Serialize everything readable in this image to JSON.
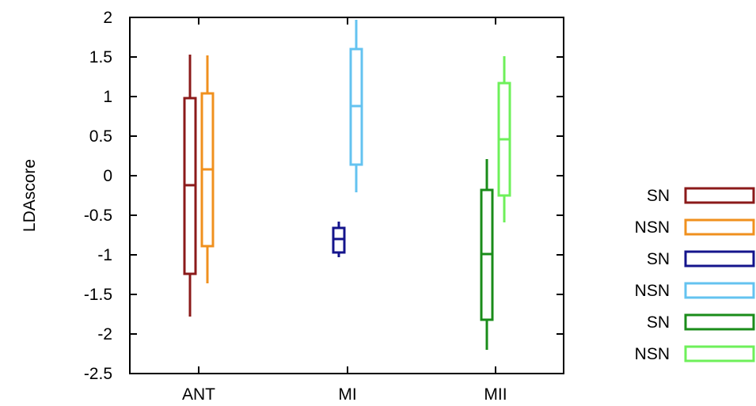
{
  "chart_data": {
    "type": "box",
    "title": "",
    "xlabel": "",
    "ylabel": "LDAscore",
    "ylim": [
      -2.5,
      2
    ],
    "yticks": [
      -2.5,
      -2,
      -1.5,
      -1,
      -0.5,
      0,
      0.5,
      1,
      1.5,
      2
    ],
    "ytick_labels": [
      "-2.5",
      "-2",
      "-1.5",
      "-1",
      "-0.5",
      "0",
      "0.5",
      "1",
      "1.5",
      "2"
    ],
    "categories": [
      "ANT",
      "MI",
      "MII"
    ],
    "grid": false,
    "legend": "right",
    "series": [
      {
        "name": "SN",
        "category": "ANT",
        "color": "#8b1a1a",
        "min": -1.78,
        "q1": -1.24,
        "median": -0.12,
        "q3": 0.98,
        "max": 1.53
      },
      {
        "name": "NSN",
        "category": "ANT",
        "color": "#f0901e",
        "min": -1.36,
        "q1": -0.89,
        "median": 0.08,
        "q3": 1.04,
        "max": 1.52
      },
      {
        "name": "SN",
        "category": "MI",
        "color": "#14148c",
        "min": -1.03,
        "q1": -0.97,
        "median": -0.8,
        "q3": -0.66,
        "max": -0.58
      },
      {
        "name": "NSN",
        "category": "MI",
        "color": "#64c3f0",
        "min": -0.21,
        "q1": 0.14,
        "median": 0.88,
        "q3": 1.6,
        "max": 1.97
      },
      {
        "name": "SN",
        "category": "MII",
        "color": "#1a8c1a",
        "min": -2.2,
        "q1": -1.82,
        "median": -0.99,
        "q3": -0.18,
        "max": 0.21
      },
      {
        "name": "NSN",
        "category": "MII",
        "color": "#6ef05a",
        "min": -0.59,
        "q1": -0.25,
        "median": 0.46,
        "q3": 1.17,
        "max": 1.51
      }
    ]
  }
}
